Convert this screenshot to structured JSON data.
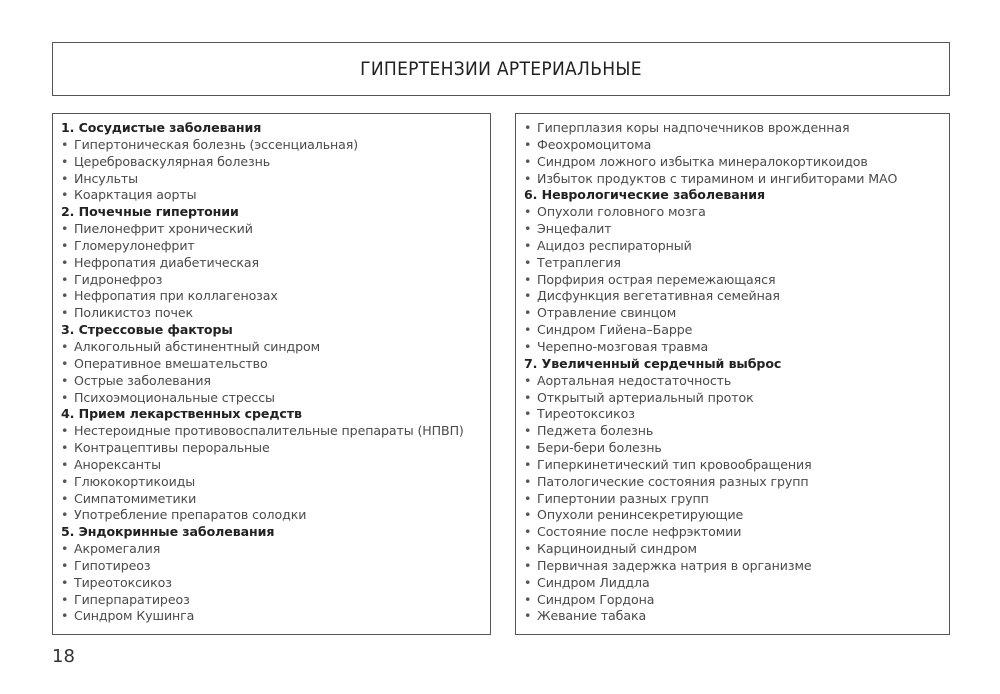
{
  "title": "ГИПЕРТЕНЗИИ АРТЕРИАЛЬНЫЕ",
  "left_column": {
    "sections": [
      {
        "heading": "1. Сосудистые заболевания",
        "items": [
          "Гипертоническая болезнь (эссенциальная)",
          "Цереброваскулярная болезнь",
          "Инсульты",
          "Коарктация аорты"
        ]
      },
      {
        "heading": "2. Почечные гипертонии",
        "items": [
          "Пиелонефрит хронический",
          "Гломерулонефрит",
          "Нефропатия диабетическая",
          "Гидронефроз",
          "Нефропатия при коллагенозах",
          "Поликистоз почек"
        ]
      },
      {
        "heading": "3. Стрессовые факторы",
        "items": [
          "Алкогольный абстинентный синдром",
          "Оперативное вмешательство",
          "Острые заболевания",
          "Психоэмоциональные стрессы"
        ]
      },
      {
        "heading": "4. Прием лекарственных средств",
        "items": [
          "Нестероидные противовоспалительные препараты (НПВП)",
          "Контрацептивы пероральные",
          "Анорексанты",
          "Глюкокортикоиды",
          "Симпатомиметики",
          "Употребление препаратов солодки"
        ]
      },
      {
        "heading": "5. Эндокринные заболевания",
        "items": [
          "Акромегалия",
          "Гипотиреоз",
          "Тиреотоксикоз",
          "Гиперпаратиреоз",
          "Синдром Кушинга"
        ]
      }
    ]
  },
  "right_column": {
    "sections": [
      {
        "heading": "",
        "items": [
          "Гиперплазия коры надпочечников врожденная",
          "Феохромоцитома",
          "Синдром ложного избытка минералокортикоидов",
          "Избыток продуктов с тирамином и ингибиторами МАО"
        ]
      },
      {
        "heading": "6. Неврологические заболевания",
        "items": [
          "Опухоли головного мозга",
          "Энцефалит",
          "Ацидоз респираторный",
          "Тетраплегия",
          "Порфирия острая перемежающаяся",
          "Дисфункция вегетативная семейная",
          "Отравление свинцом",
          "Синдром Гийена–Барре",
          "Черепно-мозговая травма"
        ]
      },
      {
        "heading": "7. Увеличенный сердечный выброс",
        "items": [
          "Аортальная недостаточность",
          "Открытый артериальный проток",
          "Тиреотоксикоз",
          "Педжета болезнь",
          "Бери-бери болезнь",
          "Гиперкинетический тип кровообращения",
          "Патологические состояния разных групп",
          "Гипертонии разных групп",
          "Опухоли ренинсекретирующие",
          "Состояние после нефрэктомии",
          "Карциноидный синдром",
          "Первичная задержка натрия в организме",
          "Синдром Лиддла",
          "Синдром Гордона",
          "Жевание табака"
        ]
      }
    ]
  },
  "page_number": "18"
}
